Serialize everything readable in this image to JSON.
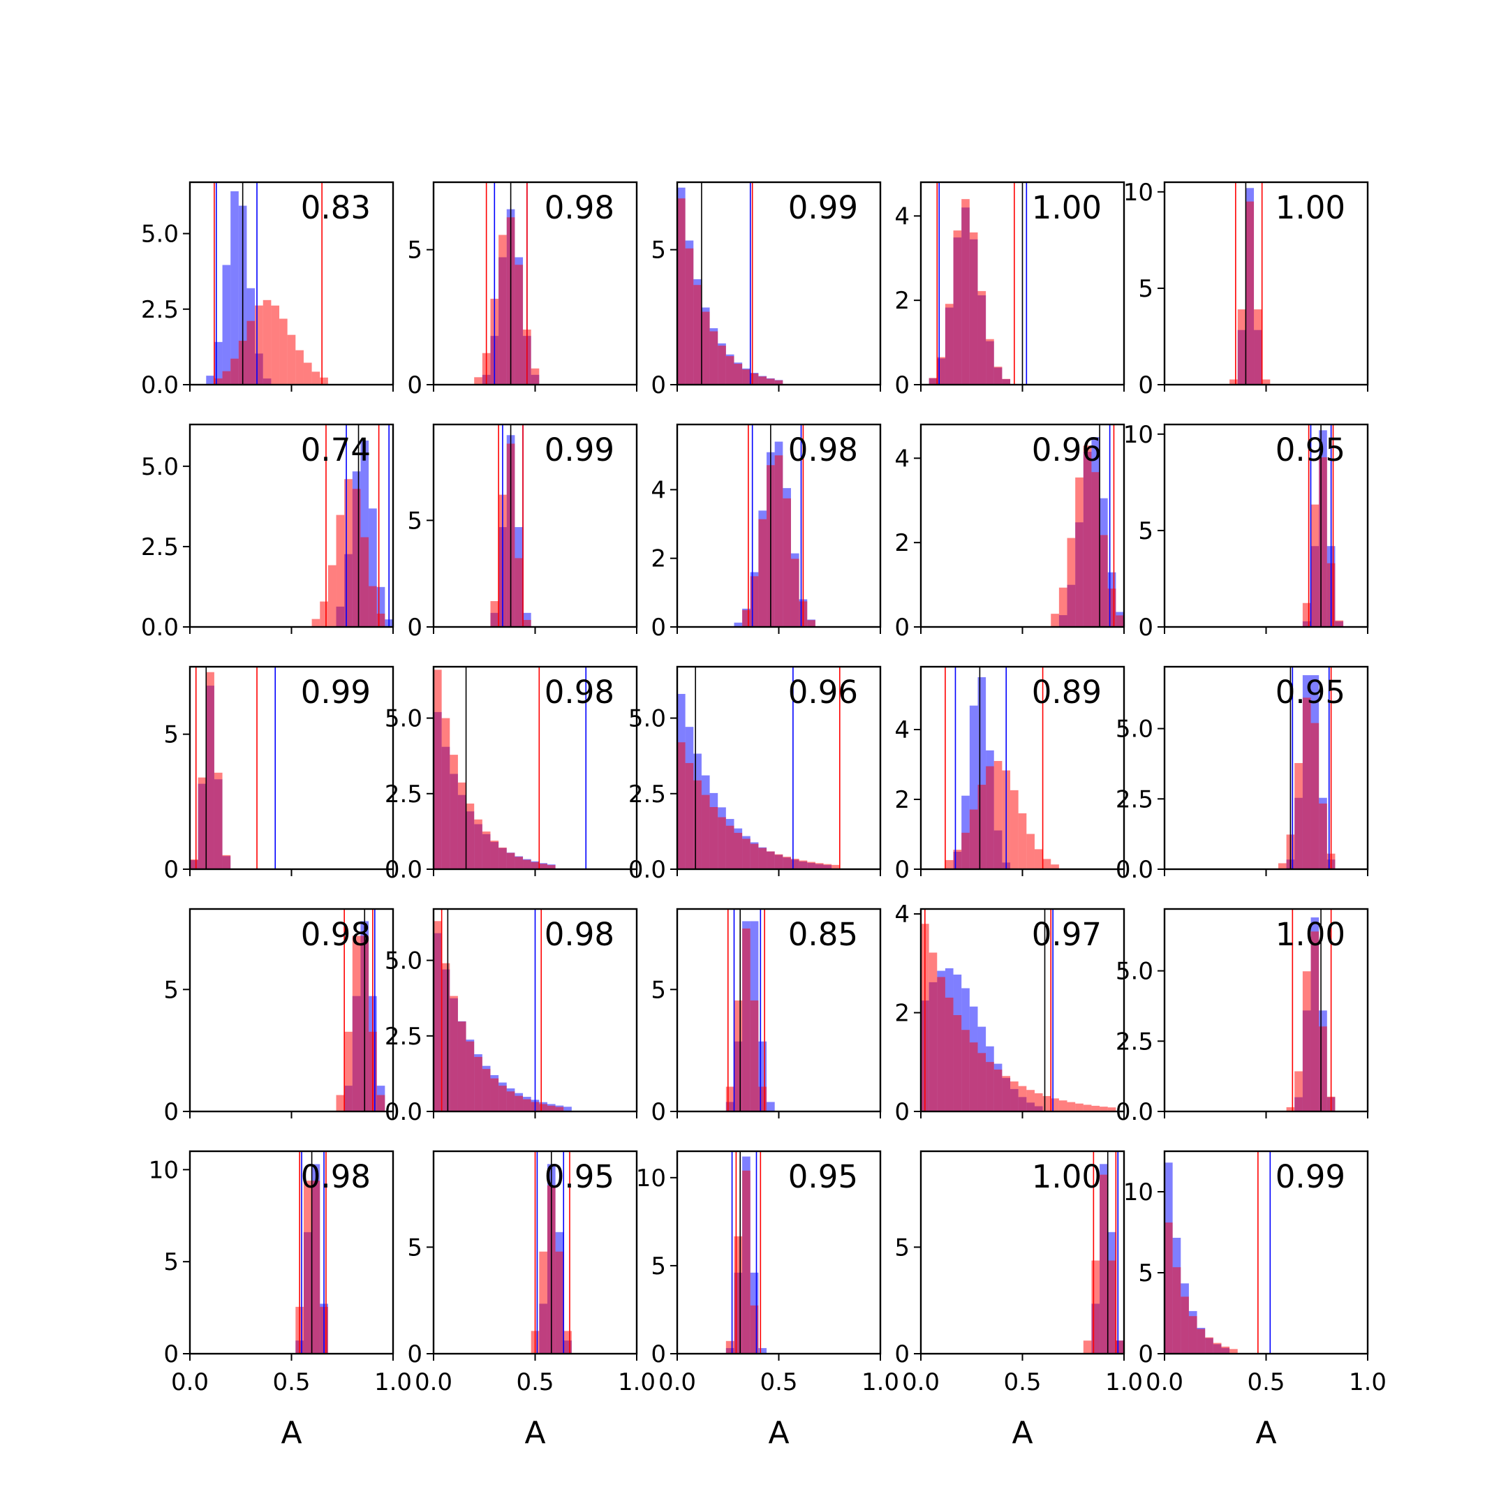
{
  "chart_data": {
    "type": "bar",
    "layout": "5x5 grid of overlapping histograms",
    "series_colors": {
      "blue": "#0000ff",
      "red": "#ff0000",
      "marker": "#000000"
    },
    "xlim": [
      0,
      1
    ],
    "x_ticks": [
      0,
      0.5,
      1.0
    ],
    "x_tick_labels": [
      "0.0",
      "0.5",
      "1.0"
    ],
    "xlabel": "A",
    "panels": [
      {
        "label": "0.83",
        "ylim": [
          0,
          6.7
        ],
        "yticks": [
          0,
          2.5,
          5
        ],
        "ytick_labels": [
          "0.0",
          "2.5",
          "5.0"
        ],
        "blue": {
          "mean": 0.21,
          "sd": 0.06,
          "skew": 0.6,
          "peak": 6.4
        },
        "red": {
          "mean": 0.3,
          "sd": 0.15,
          "skew": 1.3,
          "peak": 2.8
        },
        "vlines": {
          "black": [
            0.26
          ],
          "blue": [
            0.13,
            0.33
          ],
          "red": [
            0.12,
            0.65
          ]
        }
      },
      {
        "label": "0.98",
        "ylim": [
          0,
          7.5
        ],
        "yticks": [
          0,
          5
        ],
        "ytick_labels": [
          "0",
          "5"
        ],
        "blue": {
          "mean": 0.38,
          "sd": 0.05,
          "skew": 0,
          "peak": 6.5
        },
        "red": {
          "mean": 0.37,
          "sd": 0.06,
          "skew": 0,
          "peak": 6.2
        },
        "vlines": {
          "black": [
            0.38
          ],
          "blue": [
            0.3,
            0.46
          ],
          "red": [
            0.26,
            0.46
          ]
        }
      },
      {
        "label": "0.99",
        "ylim": [
          0,
          7.5
        ],
        "yticks": [
          0,
          5
        ],
        "ytick_labels": [
          "0",
          "5"
        ],
        "blue": {
          "mean": 0.0,
          "sd": 0.08,
          "skew": 0,
          "peak": 7.3,
          "decay": true
        },
        "red": {
          "mean": 0.0,
          "sd": 0.08,
          "skew": 0,
          "peak": 6.9,
          "decay": true
        },
        "vlines": {
          "black": [
            0.12
          ],
          "blue": [
            0.36
          ],
          "red": [
            0.37
          ]
        }
      },
      {
        "label": "1.00",
        "ylim": [
          0,
          4.8
        ],
        "yticks": [
          0,
          2,
          4
        ],
        "ytick_labels": [
          "0",
          "2",
          "4"
        ],
        "blue": {
          "mean": 0.17,
          "sd": 0.09,
          "skew": 1.4,
          "peak": 4.2
        },
        "red": {
          "mean": 0.17,
          "sd": 0.09,
          "skew": 1.4,
          "peak": 4.4
        },
        "vlines": {
          "black": [
            0.5
          ],
          "blue": [
            0.09,
            0.52
          ],
          "red": [
            0.08,
            0.46
          ]
        }
      },
      {
        "label": "1.00",
        "ylim": [
          0,
          10.5
        ],
        "yticks": [
          0,
          5,
          10
        ],
        "ytick_labels": [
          "0",
          "5",
          "10"
        ],
        "blue": {
          "mean": 0.42,
          "sd": 0.025,
          "skew": 0,
          "peak": 10.2
        },
        "red": {
          "mean": 0.42,
          "sd": 0.03,
          "skew": 0,
          "peak": 9.5
        },
        "vlines": {
          "black": [
            0.4
          ],
          "blue": [],
          "red": [
            0.35,
            0.48
          ]
        }
      },
      {
        "label": "0.74",
        "ylim": [
          0,
          6.3
        ],
        "yticks": [
          0,
          2.5,
          5
        ],
        "ytick_labels": [
          "0.0",
          "2.5",
          "5.0"
        ],
        "blue": {
          "mean": 0.88,
          "sd": 0.06,
          "skew": -0.8,
          "peak": 5.8
        },
        "red": {
          "mean": 0.83,
          "sd": 0.08,
          "skew": -0.8,
          "peak": 4.6
        },
        "vlines": {
          "black": [
            0.83
          ],
          "blue": [
            0.77,
            0.98
          ],
          "red": [
            0.67,
            0.93
          ]
        }
      },
      {
        "label": "0.99",
        "ylim": [
          0,
          9.5
        ],
        "yticks": [
          0,
          5
        ],
        "ytick_labels": [
          "0",
          "5"
        ],
        "blue": {
          "mean": 0.38,
          "sd": 0.035,
          "skew": 0,
          "peak": 9.0
        },
        "red": {
          "mean": 0.37,
          "sd": 0.035,
          "skew": 0,
          "peak": 8.6
        },
        "vlines": {
          "black": [
            0.38
          ],
          "blue": [
            0.34,
            0.44
          ],
          "red": [
            0.32,
            0.44
          ]
        }
      },
      {
        "label": "0.98",
        "ylim": [
          0,
          5.9
        ],
        "yticks": [
          0,
          2,
          4
        ],
        "ytick_labels": [
          "0",
          "2",
          "4"
        ],
        "blue": {
          "mean": 0.47,
          "sd": 0.07,
          "skew": 0.3,
          "peak": 5.4
        },
        "red": {
          "mean": 0.47,
          "sd": 0.07,
          "skew": 0.3,
          "peak": 5.0
        },
        "vlines": {
          "black": [
            0.46
          ],
          "blue": [
            0.37,
            0.61
          ],
          "red": [
            0.35,
            0.62
          ]
        }
      },
      {
        "label": "0.96",
        "ylim": [
          0,
          4.8
        ],
        "yticks": [
          0,
          2,
          4
        ],
        "ytick_labels": [
          "0",
          "2",
          "4"
        ],
        "blue": {
          "mean": 0.88,
          "sd": 0.07,
          "skew": -0.8,
          "peak": 4.5
        },
        "red": {
          "mean": 0.86,
          "sd": 0.08,
          "skew": -0.8,
          "peak": 4.3
        },
        "vlines": {
          "black": [
            0.88
          ],
          "blue": [
            0.93
          ],
          "red": [
            0.95
          ]
        }
      },
      {
        "label": "0.95",
        "ylim": [
          0,
          10.5
        ],
        "yticks": [
          0,
          5,
          10
        ],
        "ytick_labels": [
          "0",
          "5",
          "10"
        ],
        "blue": {
          "mean": 0.78,
          "sd": 0.03,
          "skew": 0,
          "peak": 10.2
        },
        "red": {
          "mean": 0.77,
          "sd": 0.035,
          "skew": 0,
          "peak": 8.8
        },
        "vlines": {
          "black": [
            0.77
          ],
          "blue": [
            0.72,
            0.82
          ],
          "red": [
            0.71,
            0.83
          ]
        }
      },
      {
        "label": "0.99",
        "ylim": [
          0,
          7.5
        ],
        "yticks": [
          0,
          5
        ],
        "ytick_labels": [
          "0",
          "5"
        ],
        "blue": {
          "mean": 0.08,
          "sd": 0.04,
          "skew": 0.9,
          "peak": 6.8
        },
        "red": {
          "mean": 0.08,
          "sd": 0.04,
          "skew": 0.9,
          "peak": 7.3
        },
        "vlines": {
          "black": [
            0.08
          ],
          "blue": [
            0.42
          ],
          "red": [
            0.03,
            0.33
          ]
        }
      },
      {
        "label": "0.98",
        "ylim": [
          0,
          6.7
        ],
        "yticks": [
          0,
          2.5,
          5
        ],
        "ytick_labels": [
          "0.0",
          "2.5",
          "5.0"
        ],
        "blue": {
          "mean": 0.0,
          "sd": 0.1,
          "skew": 0,
          "peak": 5.2,
          "decay": true
        },
        "red": {
          "mean": 0.0,
          "sd": 0.09,
          "skew": 0,
          "peak": 6.6,
          "decay": true
        },
        "vlines": {
          "black": [
            0.16
          ],
          "blue": [
            0.75
          ],
          "red": [
            0.52
          ]
        }
      },
      {
        "label": "0.96",
        "ylim": [
          0,
          6.7
        ],
        "yticks": [
          0,
          2.5,
          5
        ],
        "ytick_labels": [
          "0.0",
          "2.5",
          "5.0"
        ],
        "blue": {
          "mean": 0.0,
          "sd": 0.12,
          "skew": 0,
          "peak": 5.8,
          "decay": true
        },
        "red": {
          "mean": 0.0,
          "sd": 0.14,
          "skew": 0,
          "peak": 4.2,
          "decay": true
        },
        "vlines": {
          "black": [
            0.09
          ],
          "blue": [
            0.57
          ],
          "red": [
            0.8
          ]
        }
      },
      {
        "label": "0.89",
        "ylim": [
          0,
          5.8
        ],
        "yticks": [
          0,
          2,
          4
        ],
        "ytick_labels": [
          "0",
          "2",
          "4"
        ],
        "blue": {
          "mean": 0.29,
          "sd": 0.05,
          "skew": 0,
          "peak": 5.5
        },
        "red": {
          "mean": 0.31,
          "sd": 0.13,
          "skew": 0.9,
          "peak": 3.1
        },
        "vlines": {
          "black": [
            0.29
          ],
          "blue": [
            0.17,
            0.42
          ],
          "red": [
            0.12,
            0.6
          ]
        }
      },
      {
        "label": "0.95",
        "ylim": [
          0,
          7.2
        ],
        "yticks": [
          0,
          2.5,
          5
        ],
        "ytick_labels": [
          "0.0",
          "2.5",
          "5.0"
        ],
        "blue": {
          "mean": 0.72,
          "sd": 0.04,
          "skew": 0,
          "peak": 6.9
        },
        "red": {
          "mean": 0.71,
          "sd": 0.05,
          "skew": 0,
          "peak": 6.1
        },
        "vlines": {
          "black": [
            0.62
          ],
          "blue": [
            0.63,
            0.81
          ],
          "red": [
            0.82
          ]
        }
      },
      {
        "label": "0.98",
        "ylim": [
          0,
          8.3
        ],
        "yticks": [
          0,
          5
        ],
        "ytick_labels": [
          "0",
          "5"
        ],
        "blue": {
          "mean": 0.86,
          "sd": 0.04,
          "skew": 0,
          "peak": 7.8
        },
        "red": {
          "mean": 0.84,
          "sd": 0.045,
          "skew": 0,
          "peak": 7.2
        },
        "vlines": {
          "black": [
            0.86
          ],
          "blue": [
            0.91
          ],
          "red": [
            0.76,
            0.9
          ]
        }
      },
      {
        "label": "0.98",
        "ylim": [
          0,
          6.7
        ],
        "yticks": [
          0,
          2.5,
          5
        ],
        "ytick_labels": [
          "0.0",
          "2.5",
          "5.0"
        ],
        "blue": {
          "mean": 0.0,
          "sd": 0.11,
          "skew": 0,
          "peak": 5.9,
          "decay": true
        },
        "red": {
          "mean": 0.0,
          "sd": 0.1,
          "skew": 0,
          "peak": 6.3,
          "decay": true
        },
        "vlines": {
          "black": [
            0.07
          ],
          "blue": [
            0.5
          ],
          "red": [
            0.04,
            0.53
          ]
        }
      },
      {
        "label": "0.85",
        "ylim": [
          0,
          8.3
        ],
        "yticks": [
          0,
          5
        ],
        "ytick_labels": [
          "0",
          "5"
        ],
        "blue": {
          "mean": 0.36,
          "sd": 0.04,
          "skew": 0,
          "peak": 7.8
        },
        "red": {
          "mean": 0.34,
          "sd": 0.04,
          "skew": 0,
          "peak": 7.5
        },
        "vlines": {
          "black": [
            0.31
          ],
          "blue": [
            0.28,
            0.41
          ],
          "red": [
            0.25,
            0.43
          ]
        }
      },
      {
        "label": "0.97",
        "ylim": [
          0,
          4.1
        ],
        "yticks": [
          0,
          2,
          4
        ],
        "ytick_labels": [
          "0",
          "2",
          "4"
        ],
        "blue": {
          "mean": 0.03,
          "sd": 0.2,
          "skew": 1.0,
          "peak": 2.9
        },
        "red": {
          "mean": 0.0,
          "sd": 0.15,
          "skew": 0,
          "peak": 3.8,
          "decay": true
        },
        "vlines": {
          "black": [
            0.61
          ],
          "blue": [
            0.65
          ],
          "red": [
            0.02,
            0.64
          ]
        }
      },
      {
        "label": "1.00",
        "ylim": [
          0,
          7.2
        ],
        "yticks": [
          0,
          2.5,
          5
        ],
        "ytick_labels": [
          "0.0",
          "2.5",
          "5.0"
        ],
        "blue": {
          "mean": 0.74,
          "sd": 0.035,
          "skew": 0,
          "peak": 6.9
        },
        "red": {
          "mean": 0.73,
          "sd": 0.04,
          "skew": 0,
          "peak": 6.4
        },
        "vlines": {
          "black": [
            0.77
          ],
          "blue": [],
          "red": [
            0.63,
            0.82
          ]
        }
      },
      {
        "label": "0.98",
        "ylim": [
          0,
          11
        ],
        "yticks": [
          0,
          5,
          10
        ],
        "ytick_labels": [
          "0",
          "5",
          "10"
        ],
        "blue": {
          "mean": 0.61,
          "sd": 0.03,
          "skew": 0,
          "peak": 10.3
        },
        "red": {
          "mean": 0.6,
          "sd": 0.035,
          "skew": 0,
          "peak": 9.4
        },
        "vlines": {
          "black": [
            0.6
          ],
          "blue": [
            0.55,
            0.66
          ],
          "red": [
            0.54,
            0.67
          ]
        }
      },
      {
        "label": "0.95",
        "ylim": [
          0,
          9.5
        ],
        "yticks": [
          0,
          5
        ],
        "ytick_labels": [
          "0",
          "5"
        ],
        "blue": {
          "mean": 0.59,
          "sd": 0.03,
          "skew": 0,
          "peak": 8.9
        },
        "red": {
          "mean": 0.58,
          "sd": 0.04,
          "skew": 0,
          "peak": 7.9
        },
        "vlines": {
          "black": [
            0.58
          ],
          "blue": [
            0.51,
            0.64
          ],
          "red": [
            0.5,
            0.67
          ]
        }
      },
      {
        "label": "0.95",
        "ylim": [
          0,
          11.5
        ],
        "yticks": [
          0,
          5,
          10
        ],
        "ytick_labels": [
          "0",
          "5",
          "10"
        ],
        "blue": {
          "mean": 0.34,
          "sd": 0.03,
          "skew": 0,
          "peak": 11.2
        },
        "red": {
          "mean": 0.33,
          "sd": 0.03,
          "skew": 0,
          "peak": 10.4
        },
        "vlines": {
          "black": [
            0.31
          ],
          "blue": [
            0.27,
            0.39
          ],
          "red": [
            0.29,
            0.41
          ]
        }
      },
      {
        "label": "1.00",
        "ylim": [
          0,
          9.5
        ],
        "yticks": [
          0,
          5
        ],
        "ytick_labels": [
          "0",
          "5"
        ],
        "blue": {
          "mean": 0.91,
          "sd": 0.03,
          "skew": 0,
          "peak": 8.9
        },
        "red": {
          "mean": 0.9,
          "sd": 0.035,
          "skew": 0,
          "peak": 8.4
        },
        "vlines": {
          "black": [
            0.92
          ],
          "blue": [
            0.97
          ],
          "red": [
            0.85,
            0.96
          ]
        }
      },
      {
        "label": "0.99",
        "ylim": [
          0,
          12.5
        ],
        "yticks": [
          0,
          5,
          10
        ],
        "ytick_labels": [
          "0",
          "5",
          "10"
        ],
        "blue": {
          "mean": 0.0,
          "sd": 0.05,
          "skew": 0,
          "peak": 11.8,
          "decay": true
        },
        "red": {
          "mean": 0.0,
          "sd": 0.06,
          "skew": 0,
          "peak": 8.1,
          "decay": true
        },
        "vlines": {
          "black": [],
          "blue": [
            0.52
          ],
          "red": [
            0.46
          ]
        }
      }
    ]
  }
}
